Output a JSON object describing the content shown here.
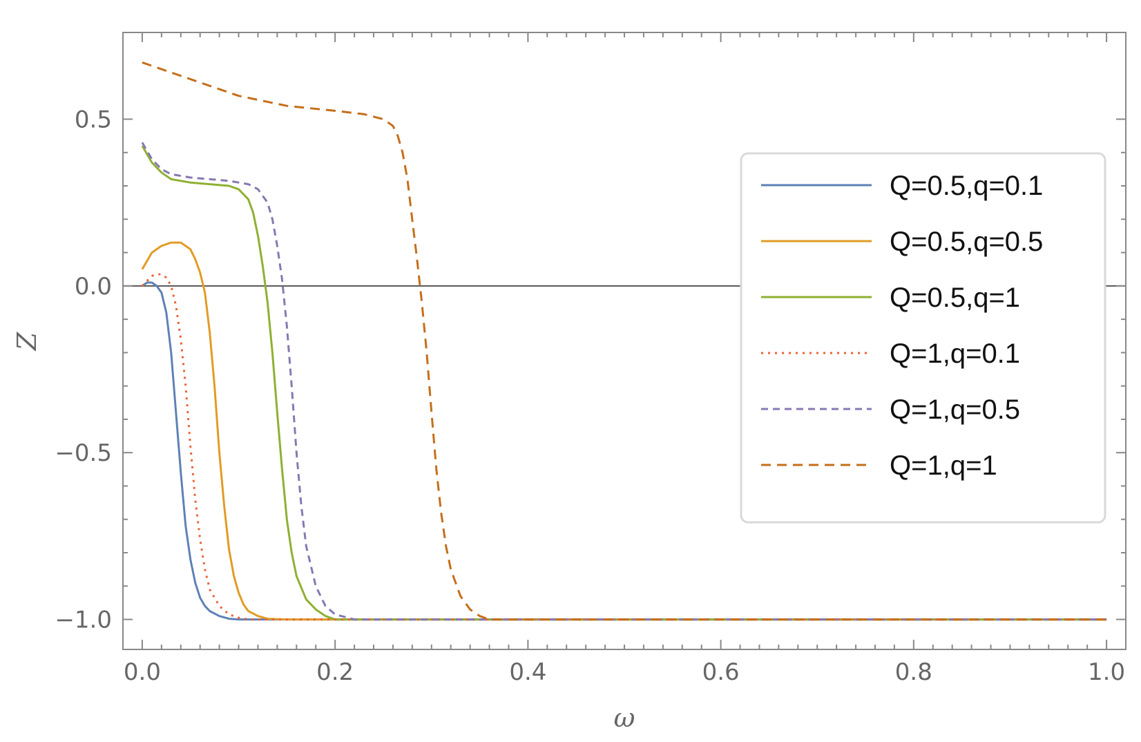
{
  "chart_data": {
    "type": "line",
    "xlabel": "ω",
    "ylabel": "Z",
    "xlim": [
      -0.02,
      1.02
    ],
    "ylim": [
      -1.09,
      0.76
    ],
    "xticks": [
      0.0,
      0.2,
      0.4,
      0.6,
      0.8,
      1.0
    ],
    "xtick_labels": [
      "0.0",
      "0.2",
      "0.4",
      "0.6",
      "0.8",
      "1.0"
    ],
    "yticks": [
      -1.0,
      -0.5,
      0.0,
      0.5
    ],
    "ytick_labels": [
      "−1.0",
      "−0.5",
      "0.0",
      "0.5"
    ],
    "grid": false,
    "zero_line": true,
    "legend_position": "right",
    "series": [
      {
        "name": "Q=0.5,q=0.1",
        "color": "#5E81B5",
        "dash": "solid",
        "x": [
          0.0,
          0.005,
          0.01,
          0.015,
          0.02,
          0.025,
          0.03,
          0.035,
          0.04,
          0.045,
          0.05,
          0.055,
          0.06,
          0.065,
          0.07,
          0.08,
          0.09,
          0.1,
          0.12,
          1.0
        ],
        "y": [
          0.0,
          0.01,
          0.01,
          0.0,
          -0.02,
          -0.08,
          -0.2,
          -0.38,
          -0.56,
          -0.72,
          -0.82,
          -0.89,
          -0.935,
          -0.96,
          -0.975,
          -0.99,
          -0.998,
          -1.0,
          -1.0,
          -1.0
        ]
      },
      {
        "name": "Q=0.5,q=0.5",
        "color": "#E19C24",
        "dash": "solid",
        "x": [
          0.0,
          0.01,
          0.02,
          0.03,
          0.04,
          0.05,
          0.055,
          0.06,
          0.065,
          0.07,
          0.075,
          0.08,
          0.085,
          0.09,
          0.095,
          0.1,
          0.105,
          0.11,
          0.12,
          0.13,
          0.15,
          1.0
        ],
        "y": [
          0.05,
          0.1,
          0.12,
          0.13,
          0.13,
          0.11,
          0.08,
          0.04,
          -0.02,
          -0.14,
          -0.3,
          -0.5,
          -0.66,
          -0.79,
          -0.87,
          -0.92,
          -0.955,
          -0.975,
          -0.99,
          -0.998,
          -1.0,
          -1.0
        ]
      },
      {
        "name": "Q=0.5,q=1",
        "color": "#8FB032",
        "dash": "solid",
        "x": [
          0.0,
          0.01,
          0.02,
          0.03,
          0.05,
          0.07,
          0.09,
          0.1,
          0.11,
          0.115,
          0.12,
          0.125,
          0.13,
          0.135,
          0.14,
          0.145,
          0.15,
          0.155,
          0.16,
          0.17,
          0.18,
          0.19,
          0.2,
          1.0
        ],
        "y": [
          0.42,
          0.37,
          0.34,
          0.32,
          0.31,
          0.305,
          0.3,
          0.29,
          0.26,
          0.22,
          0.15,
          0.06,
          -0.05,
          -0.2,
          -0.38,
          -0.55,
          -0.7,
          -0.8,
          -0.87,
          -0.94,
          -0.97,
          -0.99,
          -1.0,
          -1.0
        ]
      },
      {
        "name": "Q=1,q=0.1",
        "color": "#EB6235",
        "dash": "dotted",
        "x": [
          0.0,
          0.01,
          0.015,
          0.02,
          0.025,
          0.03,
          0.035,
          0.04,
          0.045,
          0.05,
          0.055,
          0.06,
          0.065,
          0.07,
          0.08,
          0.09,
          0.1,
          0.11,
          0.13,
          1.0
        ],
        "y": [
          0.0,
          0.03,
          0.035,
          0.035,
          0.025,
          0.0,
          -0.06,
          -0.16,
          -0.3,
          -0.48,
          -0.64,
          -0.76,
          -0.85,
          -0.91,
          -0.96,
          -0.985,
          -0.995,
          -1.0,
          -1.0,
          -1.0
        ]
      },
      {
        "name": "Q=1,q=0.5",
        "color": "#8778B3",
        "dash": "short-dash",
        "x": [
          0.0,
          0.01,
          0.02,
          0.03,
          0.05,
          0.07,
          0.09,
          0.11,
          0.12,
          0.13,
          0.135,
          0.14,
          0.145,
          0.15,
          0.155,
          0.16,
          0.165,
          0.17,
          0.18,
          0.19,
          0.2,
          0.22,
          1.0
        ],
        "y": [
          0.43,
          0.38,
          0.35,
          0.335,
          0.325,
          0.32,
          0.315,
          0.305,
          0.29,
          0.25,
          0.2,
          0.12,
          0.02,
          -0.12,
          -0.3,
          -0.5,
          -0.66,
          -0.78,
          -0.9,
          -0.96,
          -0.985,
          -1.0,
          -1.0
        ]
      },
      {
        "name": "Q=1,q=1",
        "color": "#C56E1A",
        "dash": "long-dash",
        "x": [
          0.0,
          0.05,
          0.1,
          0.15,
          0.2,
          0.23,
          0.25,
          0.26,
          0.265,
          0.27,
          0.275,
          0.28,
          0.285,
          0.29,
          0.295,
          0.3,
          0.305,
          0.31,
          0.315,
          0.32,
          0.33,
          0.34,
          0.35,
          0.36,
          1.0
        ],
        "y": [
          0.67,
          0.62,
          0.57,
          0.54,
          0.525,
          0.515,
          0.5,
          0.48,
          0.45,
          0.4,
          0.32,
          0.2,
          0.08,
          -0.05,
          -0.2,
          -0.38,
          -0.55,
          -0.68,
          -0.78,
          -0.85,
          -0.93,
          -0.97,
          -0.99,
          -1.0,
          -1.0
        ]
      }
    ]
  }
}
